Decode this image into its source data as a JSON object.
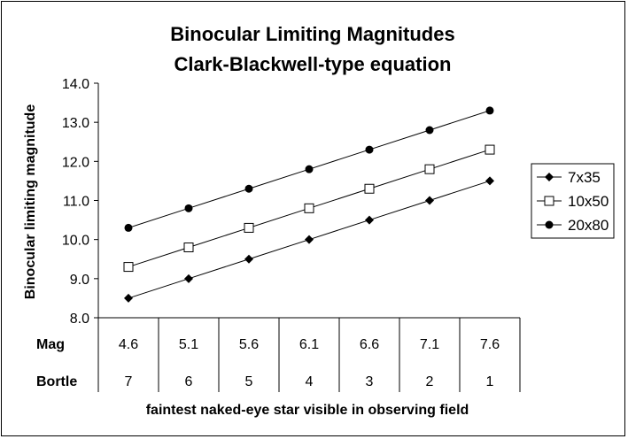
{
  "chart_data": {
    "type": "line",
    "title": [
      "Binocular Limiting Magnitudes",
      "Clark-Blackwell-type equation"
    ],
    "xlabel": "faintest naked-eye star visible in observing field",
    "ylabel": "Binocular limiting magnitude",
    "ylim": [
      8.0,
      14.0
    ],
    "yticks": [
      "8.0",
      "9.0",
      "10.0",
      "11.0",
      "12.0",
      "13.0",
      "14.0"
    ],
    "grid": false,
    "legend_position": "right",
    "table_rows": [
      {
        "label": "Mag",
        "values": [
          "4.6",
          "5.1",
          "5.6",
          "6.1",
          "6.6",
          "7.1",
          "7.6"
        ]
      },
      {
        "label": "Bortle",
        "values": [
          "7",
          "6",
          "5",
          "4",
          "3",
          "2",
          "1"
        ]
      }
    ],
    "x": [
      4.6,
      5.1,
      5.6,
      6.1,
      6.6,
      7.1,
      7.6
    ],
    "series": [
      {
        "name": "7x35",
        "marker": "diamond",
        "values": [
          8.5,
          9.0,
          9.5,
          10.0,
          10.5,
          11.0,
          11.5
        ]
      },
      {
        "name": "10x50",
        "marker": "open-square",
        "values": [
          9.3,
          9.8,
          10.3,
          10.8,
          11.3,
          11.8,
          12.3
        ]
      },
      {
        "name": "20x80",
        "marker": "circle",
        "values": [
          10.3,
          10.8,
          11.3,
          11.8,
          12.3,
          12.8,
          13.3
        ]
      }
    ]
  }
}
